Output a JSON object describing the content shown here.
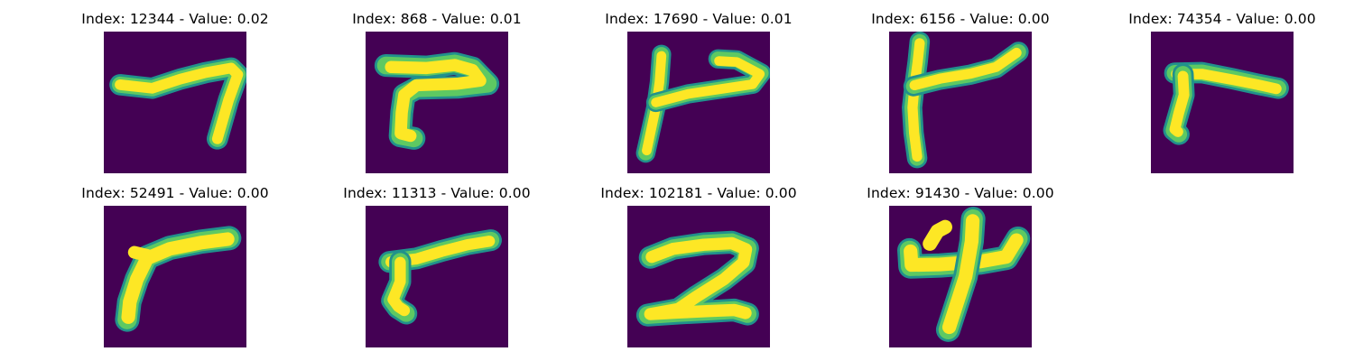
{
  "colors": {
    "background_low": "#440154",
    "edge_mid": "#21918c",
    "edge_light": "#5ec962",
    "stroke_high": "#fde725"
  },
  "panels": [
    {
      "title": "Index: 12344 - Value: 0.02",
      "glyph": "seven"
    },
    {
      "title": "Index: 868 - Value: 0.01",
      "glyph": "hook-seven"
    },
    {
      "title": "Index: 17690 - Value: 0.01",
      "glyph": "checkmark-four"
    },
    {
      "title": "Index: 6156 - Value: 0.00",
      "glyph": "tall-four"
    },
    {
      "title": "Index: 74354 - Value: 0.00",
      "glyph": "corner"
    },
    {
      "title": "Index: 52491 - Value: 0.00",
      "glyph": "wide-corner"
    },
    {
      "title": "Index: 11313 - Value: 0.00",
      "glyph": "slant-corner"
    },
    {
      "title": "Index: 102181 - Value: 0.00",
      "glyph": "two"
    },
    {
      "title": "Index: 91430 - Value: 0.00",
      "glyph": "four"
    }
  ]
}
